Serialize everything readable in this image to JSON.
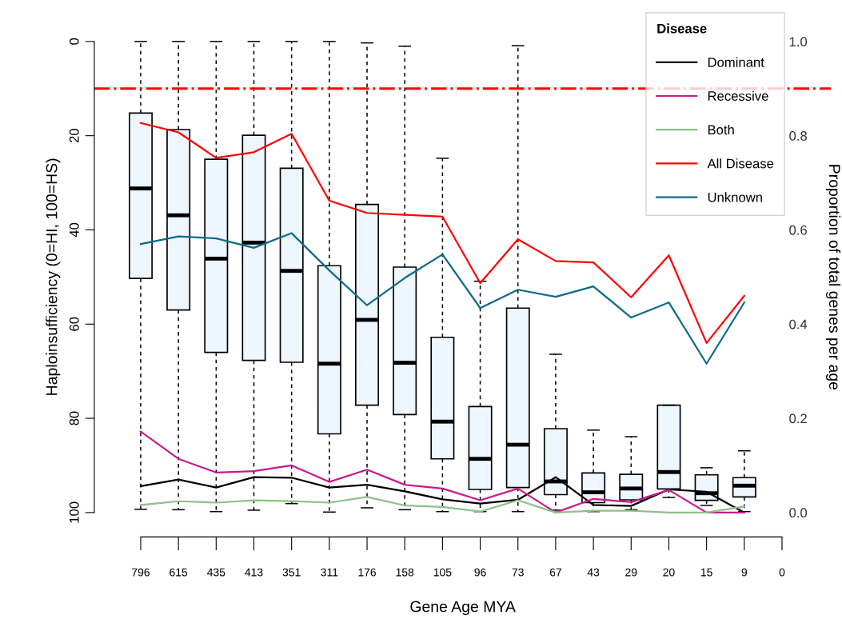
{
  "chart_data": {
    "type": "box",
    "xlabel": "Gene Age MYA",
    "ylabel": "Haploinsufficiency (0=HI, 100=HS)",
    "y2label": "Proportion of total genes per age",
    "legend_title": "Disease",
    "categories": [
      "796",
      "615",
      "435",
      "413",
      "351",
      "311",
      "176",
      "158",
      "105",
      "96",
      "73",
      "67",
      "43",
      "29",
      "20",
      "15",
      "9",
      "0"
    ],
    "ylim": [
      100,
      0
    ],
    "yticks": [
      0,
      20,
      40,
      60,
      80,
      100
    ],
    "y2lim": [
      0,
      1
    ],
    "y2ticks": [
      {
        "value": 0,
        "label": "0.0"
      },
      {
        "value": 0.2,
        "label": "0.2"
      },
      {
        "value": 0.4,
        "label": "0.4"
      },
      {
        "value": 0.6,
        "label": "0.6"
      },
      {
        "value": 0.8,
        "label": "0.8"
      },
      {
        "value": 1,
        "label": "1.0"
      }
    ],
    "grid": false,
    "legend": "top right",
    "ref_lines": [
      {
        "axis": "y",
        "value": 10,
        "color": "#ff0000",
        "line_style": "dashdot"
      }
    ],
    "series": [
      {
        "color": "#eef6ff",
        "boxes": [
          {
            "low": 0,
            "q1": 15.2,
            "median": 31.2,
            "q3": 50.3,
            "high": 99.3
          },
          {
            "low": 0,
            "q1": 18.7,
            "median": 36.9,
            "q3": 57.0,
            "high": 99.4
          },
          {
            "low": 0,
            "q1": 25.0,
            "median": 46.1,
            "q3": 66.0,
            "high": 99.8
          },
          {
            "low": 0,
            "q1": 19.9,
            "median": 42.7,
            "q3": 67.7,
            "high": 99.5
          },
          {
            "low": 0,
            "q1": 26.9,
            "median": 48.7,
            "q3": 68.1,
            "high": 98.1
          },
          {
            "low": 0,
            "q1": 47.6,
            "median": 68.4,
            "q3": 83.3,
            "high": 99.9
          },
          {
            "low": 0.3,
            "q1": 34.6,
            "median": 59.1,
            "q3": 77.2,
            "high": 99.0
          },
          {
            "low": 1.0,
            "q1": 47.9,
            "median": 68.2,
            "q3": 79.2,
            "high": 99.4
          },
          {
            "low": 24.8,
            "q1": 62.8,
            "median": 80.7,
            "q3": 88.6,
            "high": 99.8
          },
          {
            "low": 50.9,
            "q1": 77.5,
            "median": 88.6,
            "q3": 95.1,
            "high": 99.8
          },
          {
            "low": 0.9,
            "q1": 56.6,
            "median": 85.6,
            "q3": 94.7,
            "high": 99.8
          },
          {
            "low": 66.4,
            "q1": 82.2,
            "median": 93.4,
            "q3": 96.2,
            "high": 99.5
          },
          {
            "low": 82.5,
            "q1": 91.6,
            "median": 95.7,
            "q3": 97.9,
            "high": 99.8
          },
          {
            "low": 83.9,
            "q1": 91.9,
            "median": 94.9,
            "q3": 97.3,
            "high": 99.4
          },
          {
            "low": 77.2,
            "q1": 77.2,
            "median": 91.4,
            "q3": 95.0,
            "high": 96.8
          },
          {
            "low": 90.5,
            "q1": 92.0,
            "median": 95.9,
            "q3": 97.4,
            "high": 98.5
          },
          {
            "low": 86.9,
            "q1": 92.6,
            "median": 94.3,
            "q3": 96.7,
            "high": 99.8
          },
          null
        ]
      },
      {
        "type": "line",
        "axis": "y2",
        "name": "Dominant",
        "color": "#000000",
        "values": [
          0.056,
          0.07,
          0.053,
          0.075,
          0.074,
          0.053,
          0.059,
          0.045,
          0.028,
          0.019,
          0.027,
          0.075,
          0.016,
          0.014,
          0.049,
          0.044,
          0.0,
          null
        ]
      },
      {
        "type": "line",
        "axis": "y2",
        "name": "Recessive",
        "color": "#c8198c",
        "values": [
          0.172,
          0.114,
          0.085,
          0.088,
          0.1,
          0.065,
          0.091,
          0.059,
          0.051,
          0.026,
          0.051,
          0.0,
          0.029,
          0.022,
          0.048,
          0.0,
          0.0,
          null
        ]
      },
      {
        "type": "line",
        "axis": "y2",
        "name": "Both",
        "color": "#8fbf8a",
        "values": [
          0.016,
          0.024,
          0.021,
          0.026,
          0.024,
          0.021,
          0.033,
          0.015,
          0.012,
          0.002,
          0.026,
          0.0,
          0.004,
          0.004,
          0.0,
          0.0,
          0.013,
          null
        ]
      },
      {
        "type": "line",
        "axis": "y2",
        "name": "All Disease",
        "color": "#ff0000",
        "values": [
          0.827,
          0.807,
          0.753,
          0.765,
          0.804,
          0.662,
          0.636,
          0.632,
          0.628,
          0.487,
          0.58,
          0.534,
          0.531,
          0.457,
          0.546,
          0.36,
          0.46,
          null
        ]
      },
      {
        "type": "line",
        "axis": "y2",
        "name": "Unknown",
        "color": "#0e6a8a",
        "values": [
          0.57,
          0.586,
          0.582,
          0.562,
          0.593,
          0.514,
          0.44,
          0.498,
          0.548,
          0.434,
          0.473,
          0.458,
          0.48,
          0.414,
          0.446,
          0.316,
          0.446,
          null
        ]
      }
    ]
  }
}
